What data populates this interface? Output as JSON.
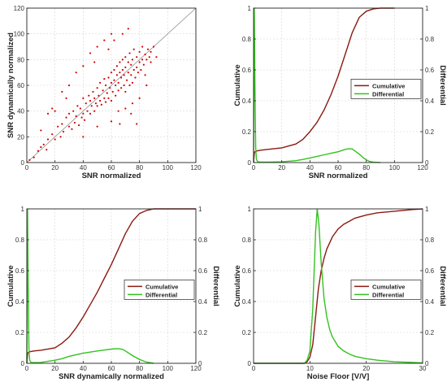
{
  "colors": {
    "cumulative": "#8b1a10",
    "differential": "#33c21f",
    "scatter": "#d40000",
    "grid": "#d6d6d6",
    "frame": "#222222",
    "diagonal": "#8a8a8a"
  },
  "chart_data": [
    {
      "type": "scatter",
      "xlabel": "SNR normalized",
      "ylabel": "SNR dynamically normalized",
      "xlim": [
        0,
        120
      ],
      "ylim": [
        0,
        120
      ],
      "xticks": [
        "0",
        "20",
        "40",
        "60",
        "80",
        "100",
        "120"
      ],
      "yticks": [
        "0",
        "20",
        "40",
        "60",
        "80",
        "100",
        "120"
      ],
      "grid": true,
      "reference_line": "y = x",
      "series": [
        {
          "points": [
            [
              2,
              2
            ],
            [
              5,
              4
            ],
            [
              8,
              9
            ],
            [
              10,
              12
            ],
            [
              12,
              14
            ],
            [
              14,
              10
            ],
            [
              15,
              18
            ],
            [
              18,
              22
            ],
            [
              20,
              18
            ],
            [
              22,
              28
            ],
            [
              24,
              20
            ],
            [
              25,
              30
            ],
            [
              26,
              24
            ],
            [
              28,
              35
            ],
            [
              30,
              28
            ],
            [
              30,
              38
            ],
            [
              32,
              26
            ],
            [
              33,
              40
            ],
            [
              34,
              31
            ],
            [
              35,
              36
            ],
            [
              36,
              44
            ],
            [
              37,
              29
            ],
            [
              38,
              42
            ],
            [
              39,
              35
            ],
            [
              40,
              38
            ],
            [
              40,
              50
            ],
            [
              41,
              33
            ],
            [
              42,
              46
            ],
            [
              43,
              40
            ],
            [
              44,
              52
            ],
            [
              45,
              38
            ],
            [
              45,
              48
            ],
            [
              46,
              44
            ],
            [
              47,
              55
            ],
            [
              48,
              40
            ],
            [
              48,
              50
            ],
            [
              49,
              46
            ],
            [
              50,
              58
            ],
            [
              50,
              44
            ],
            [
              51,
              52
            ],
            [
              52,
              48
            ],
            [
              52,
              62
            ],
            [
              53,
              45
            ],
            [
              54,
              56
            ],
            [
              55,
              50
            ],
            [
              55,
              65
            ],
            [
              56,
              47
            ],
            [
              56,
              60
            ],
            [
              57,
              54
            ],
            [
              58,
              66
            ],
            [
              58,
              50
            ],
            [
              59,
              58
            ],
            [
              60,
              62
            ],
            [
              60,
              70
            ],
            [
              60,
              48
            ],
            [
              61,
              55
            ],
            [
              62,
              64
            ],
            [
              62,
              72
            ],
            [
              63,
              52
            ],
            [
              63,
              60
            ],
            [
              64,
              68
            ],
            [
              64,
              75
            ],
            [
              65,
              56
            ],
            [
              65,
              62
            ],
            [
              66,
              70
            ],
            [
              66,
              78
            ],
            [
              67,
              58
            ],
            [
              67,
              66
            ],
            [
              68,
              72
            ],
            [
              68,
              80
            ],
            [
              69,
              60
            ],
            [
              69,
              68
            ],
            [
              70,
              74
            ],
            [
              70,
              82
            ],
            [
              70,
              55
            ],
            [
              71,
              64
            ],
            [
              72,
              70
            ],
            [
              72,
              78
            ],
            [
              73,
              60
            ],
            [
              73,
              85
            ],
            [
              74,
              68
            ],
            [
              74,
              76
            ],
            [
              75,
              62
            ],
            [
              75,
              80
            ],
            [
              76,
              72
            ],
            [
              76,
              88
            ],
            [
              77,
              66
            ],
            [
              78,
              74
            ],
            [
              78,
              82
            ],
            [
              79,
              70
            ],
            [
              80,
              78
            ],
            [
              80,
              86
            ],
            [
              81,
              72
            ],
            [
              82,
              80
            ],
            [
              82,
              90
            ],
            [
              83,
              76
            ],
            [
              84,
              84
            ],
            [
              85,
              80
            ],
            [
              86,
              88
            ],
            [
              87,
              82
            ],
            [
              88,
              86
            ],
            [
              90,
              90
            ],
            [
              25,
              55
            ],
            [
              30,
              60
            ],
            [
              35,
              70
            ],
            [
              20,
              40
            ],
            [
              40,
              75
            ],
            [
              45,
              85
            ],
            [
              50,
              90
            ],
            [
              55,
              95
            ],
            [
              60,
              100
            ],
            [
              40,
              20
            ],
            [
              50,
              28
            ],
            [
              60,
              32
            ],
            [
              65,
              40
            ],
            [
              70,
              42
            ],
            [
              75,
              46
            ],
            [
              78,
              30
            ],
            [
              80,
              50
            ],
            [
              85,
              60
            ],
            [
              15,
              38
            ],
            [
              18,
              42
            ],
            [
              28,
              50
            ],
            [
              10,
              25
            ],
            [
              62,
              95
            ],
            [
              68,
              100
            ],
            [
              72,
              104
            ],
            [
              58,
              88
            ],
            [
              48,
              78
            ],
            [
              66,
              30
            ],
            [
              74,
              38
            ],
            [
              84,
              68
            ],
            [
              88,
              78
            ],
            [
              92,
              82
            ]
          ]
        }
      ]
    },
    {
      "type": "line",
      "xlabel": "SNR normalized",
      "ylabel": "Cumulative",
      "y2label": "Differential",
      "xlim": [
        0,
        120
      ],
      "ylim": [
        0,
        1
      ],
      "xticks": [
        "0",
        "20",
        "40",
        "60",
        "80",
        "100",
        "120"
      ],
      "yticks": [
        "0",
        "0.2",
        "0.4",
        "0.6",
        "0.8",
        "1"
      ],
      "y2ticks": [
        "0",
        "0.2",
        "0.4",
        "0.6",
        "0.8",
        "1"
      ],
      "legend": "right",
      "grid": true,
      "series": [
        {
          "name": "Cumulative",
          "x": [
            0,
            0.5,
            1,
            2,
            5,
            10,
            20,
            30,
            35,
            40,
            45,
            50,
            55,
            60,
            65,
            70,
            75,
            80,
            85,
            90,
            95,
            100
          ],
          "values": [
            0,
            0.06,
            0.07,
            0.075,
            0.08,
            0.085,
            0.095,
            0.12,
            0.15,
            0.2,
            0.26,
            0.34,
            0.44,
            0.56,
            0.7,
            0.84,
            0.94,
            0.98,
            0.995,
            1.0,
            1.0,
            1.0
          ]
        },
        {
          "name": "Differential",
          "x": [
            0,
            0.5,
            1,
            1.5,
            2,
            3,
            5,
            10,
            20,
            30,
            35,
            40,
            45,
            50,
            55,
            60,
            65,
            68,
            70,
            72,
            75,
            78,
            80,
            82,
            85,
            90
          ],
          "values": [
            0,
            1.0,
            0.5,
            0.1,
            0.02,
            0.005,
            0.003,
            0.003,
            0.005,
            0.012,
            0.02,
            0.03,
            0.04,
            0.05,
            0.06,
            0.07,
            0.085,
            0.09,
            0.088,
            0.075,
            0.055,
            0.03,
            0.018,
            0.008,
            0.003,
            0
          ]
        }
      ]
    },
    {
      "type": "line",
      "xlabel": "SNR dynamically normalized",
      "ylabel": "Cumulative",
      "y2label": "Differential",
      "xlim": [
        0,
        120
      ],
      "ylim": [
        0,
        1
      ],
      "xticks": [
        "0",
        "20",
        "40",
        "60",
        "80",
        "100",
        "120"
      ],
      "yticks": [
        "0",
        "0.2",
        "0.4",
        "0.6",
        "0.8",
        "1"
      ],
      "y2ticks": [
        "0",
        "0.2",
        "0.4",
        "0.6",
        "0.8",
        "1"
      ],
      "legend": "right",
      "grid": true,
      "series": [
        {
          "name": "Cumulative",
          "x": [
            0,
            0.5,
            1,
            2,
            5,
            10,
            20,
            25,
            30,
            35,
            40,
            45,
            50,
            55,
            60,
            65,
            70,
            75,
            80,
            85,
            90,
            100,
            120
          ],
          "values": [
            0,
            0.06,
            0.07,
            0.075,
            0.08,
            0.085,
            0.1,
            0.13,
            0.17,
            0.23,
            0.3,
            0.38,
            0.46,
            0.55,
            0.64,
            0.74,
            0.84,
            0.92,
            0.97,
            0.99,
            1.0,
            1.0,
            1.0
          ]
        },
        {
          "name": "Differential",
          "x": [
            0,
            0.5,
            1,
            1.5,
            2,
            3,
            5,
            10,
            20,
            25,
            30,
            40,
            50,
            60,
            65,
            68,
            70,
            75,
            80,
            85,
            90
          ],
          "values": [
            0,
            1.0,
            0.5,
            0.1,
            0.02,
            0.005,
            0.005,
            0.006,
            0.02,
            0.03,
            0.045,
            0.065,
            0.08,
            0.092,
            0.095,
            0.09,
            0.08,
            0.05,
            0.025,
            0.008,
            0
          ]
        }
      ]
    },
    {
      "type": "line",
      "xlabel": "Noise Floor [V/V]",
      "ylabel": "Cumulative",
      "y2label": "Differential",
      "xlim": [
        0,
        30
      ],
      "ylim": [
        0,
        1
      ],
      "xticks": [
        "0",
        "10",
        "20",
        "30"
      ],
      "yticks": [
        "0",
        "0.2",
        "0.4",
        "0.6",
        "0.8",
        "1"
      ],
      "y2ticks": [
        "0",
        "0.2",
        "0.4",
        "0.6",
        "0.8",
        "1"
      ],
      "legend": "right",
      "grid": true,
      "series": [
        {
          "name": "Cumulative",
          "x": [
            0,
            9,
            9.5,
            10,
            10.5,
            11,
            11.5,
            12,
            12.5,
            13,
            14,
            15,
            16,
            18,
            20,
            22,
            25,
            28,
            30
          ],
          "values": [
            0,
            0,
            0.01,
            0.04,
            0.12,
            0.3,
            0.48,
            0.6,
            0.68,
            0.74,
            0.82,
            0.87,
            0.9,
            0.94,
            0.96,
            0.975,
            0.985,
            0.995,
            1.0
          ]
        },
        {
          "name": "Differential",
          "x": [
            0,
            9,
            9.5,
            10,
            10.5,
            11,
            11.3,
            11.6,
            12,
            12.5,
            13,
            13.5,
            14,
            15,
            16,
            17,
            18,
            20,
            22,
            25,
            30
          ],
          "values": [
            0,
            0,
            0.02,
            0.08,
            0.35,
            0.85,
            1.0,
            0.9,
            0.65,
            0.42,
            0.3,
            0.22,
            0.17,
            0.11,
            0.08,
            0.06,
            0.045,
            0.03,
            0.02,
            0.01,
            0.003
          ]
        }
      ]
    }
  ]
}
